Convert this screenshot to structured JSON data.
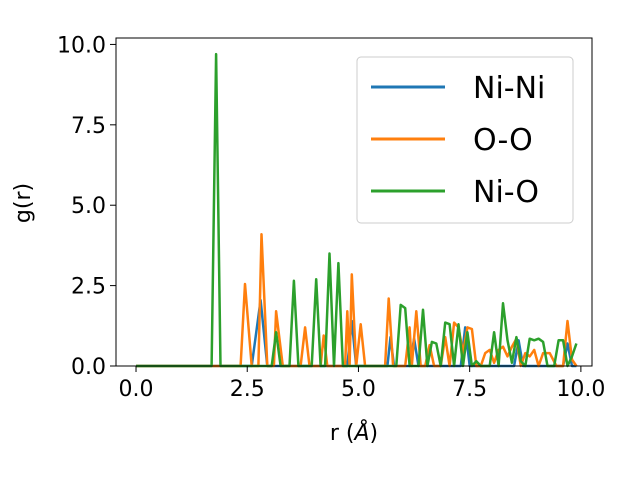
{
  "chart_data": {
    "type": "line",
    "xlabel_main": "r (",
    "xlabel_unit": "Å",
    "xlabel_close": ")",
    "ylabel": "g(r)",
    "xlim": [
      -0.45,
      10.25
    ],
    "ylim": [
      0,
      10.2
    ],
    "xticks": [
      "0.0",
      "2.5",
      "5.0",
      "7.5",
      "10.0"
    ],
    "xtick_values": [
      0,
      2.5,
      5,
      7.5,
      10
    ],
    "yticks": [
      "0.0",
      "2.5",
      "5.0",
      "7.5",
      "10.0"
    ],
    "ytick_values": [
      0,
      2.5,
      5,
      7.5,
      10
    ],
    "legend_position": "upper-right",
    "series": [
      {
        "name": "Ni-Ni",
        "color": "#1f77b4",
        "points": [
          [
            0,
            0
          ],
          [
            2.6,
            0
          ],
          [
            2.8,
            2.05
          ],
          [
            2.95,
            0
          ],
          [
            4.75,
            0
          ],
          [
            4.85,
            1.4
          ],
          [
            4.95,
            0
          ],
          [
            5.65,
            0
          ],
          [
            5.72,
            0.9
          ],
          [
            5.8,
            0
          ],
          [
            6.15,
            0
          ],
          [
            6.25,
            0.85
          ],
          [
            6.35,
            0
          ],
          [
            7.3,
            0
          ],
          [
            7.4,
            1.2
          ],
          [
            7.5,
            0
          ],
          [
            8.5,
            0
          ],
          [
            8.6,
            0.8
          ],
          [
            8.7,
            0
          ],
          [
            9.6,
            0
          ],
          [
            9.7,
            0.7
          ],
          [
            9.8,
            0
          ],
          [
            9.9,
            0
          ]
        ]
      },
      {
        "name": "O-O",
        "color": "#ff7f0e",
        "points": [
          [
            0,
            0
          ],
          [
            2.35,
            0
          ],
          [
            2.45,
            2.55
          ],
          [
            2.6,
            0
          ],
          [
            2.75,
            0
          ],
          [
            2.82,
            4.1
          ],
          [
            2.95,
            0
          ],
          [
            3.1,
            0
          ],
          [
            3.15,
            1.7
          ],
          [
            3.3,
            0
          ],
          [
            3.7,
            0
          ],
          [
            3.8,
            1.2
          ],
          [
            3.9,
            0
          ],
          [
            4.15,
            0
          ],
          [
            4.22,
            0.95
          ],
          [
            4.3,
            0
          ],
          [
            4.7,
            0
          ],
          [
            4.75,
            1.7
          ],
          [
            4.8,
            0
          ],
          [
            4.85,
            2.85
          ],
          [
            4.95,
            0
          ],
          [
            5.05,
            1.3
          ],
          [
            5.15,
            0
          ],
          [
            5.6,
            0
          ],
          [
            5.68,
            2.1
          ],
          [
            5.78,
            0
          ],
          [
            6.05,
            0
          ],
          [
            6.15,
            1.2
          ],
          [
            6.2,
            0
          ],
          [
            6.3,
            1.7
          ],
          [
            6.4,
            0
          ],
          [
            6.5,
            0
          ],
          [
            6.6,
            0.65
          ],
          [
            6.7,
            0
          ],
          [
            6.85,
            0
          ],
          [
            6.95,
            0.9
          ],
          [
            7.05,
            0
          ],
          [
            7.15,
            1.35
          ],
          [
            7.25,
            1.2
          ],
          [
            7.35,
            0.4
          ],
          [
            7.45,
            1.2
          ],
          [
            7.55,
            1.15
          ],
          [
            7.65,
            0
          ],
          [
            7.75,
            0
          ],
          [
            7.85,
            0.4
          ],
          [
            7.95,
            0.5
          ],
          [
            8.05,
            0.1
          ],
          [
            8.15,
            0.5
          ],
          [
            8.25,
            0.6
          ],
          [
            8.35,
            0.3
          ],
          [
            8.45,
            0.6
          ],
          [
            8.55,
            0.85
          ],
          [
            8.65,
            0
          ],
          [
            8.75,
            0.4
          ],
          [
            8.85,
            0.3
          ],
          [
            8.95,
            0.5
          ],
          [
            9.05,
            0
          ],
          [
            9.15,
            0.4
          ],
          [
            9.3,
            0.4
          ],
          [
            9.45,
            0
          ],
          [
            9.6,
            0
          ],
          [
            9.7,
            1.4
          ],
          [
            9.8,
            0.2
          ],
          [
            9.9,
            0
          ]
        ]
      },
      {
        "name": "Ni-O",
        "color": "#2ca02c",
        "points": [
          [
            0,
            0
          ],
          [
            1.7,
            0
          ],
          [
            1.8,
            9.7
          ],
          [
            1.9,
            0
          ],
          [
            3.05,
            0
          ],
          [
            3.15,
            1.05
          ],
          [
            3.25,
            0
          ],
          [
            3.45,
            0
          ],
          [
            3.55,
            2.65
          ],
          [
            3.65,
            0
          ],
          [
            3.95,
            0
          ],
          [
            4.05,
            2.7
          ],
          [
            4.15,
            0
          ],
          [
            4.25,
            0
          ],
          [
            4.35,
            3.5
          ],
          [
            4.45,
            0
          ],
          [
            4.55,
            3.2
          ],
          [
            4.65,
            0
          ],
          [
            5.85,
            0
          ],
          [
            5.95,
            1.9
          ],
          [
            6.05,
            1.8
          ],
          [
            6.15,
            0
          ],
          [
            6.35,
            0
          ],
          [
            6.45,
            1.75
          ],
          [
            6.55,
            0
          ],
          [
            6.65,
            0.75
          ],
          [
            6.75,
            0.7
          ],
          [
            6.85,
            0
          ],
          [
            6.95,
            1.35
          ],
          [
            7.05,
            1.3
          ],
          [
            7.15,
            0
          ],
          [
            7.25,
            1.3
          ],
          [
            7.35,
            0
          ],
          [
            7.45,
            1.05
          ],
          [
            7.55,
            0
          ],
          [
            7.65,
            0.15
          ],
          [
            7.75,
            0
          ],
          [
            7.95,
            0
          ],
          [
            8.05,
            1.05
          ],
          [
            8.15,
            0
          ],
          [
            8.25,
            1.95
          ],
          [
            8.35,
            0.8
          ],
          [
            8.45,
            0.1
          ],
          [
            8.55,
            0.9
          ],
          [
            8.65,
            0.15
          ],
          [
            8.75,
            0
          ],
          [
            8.85,
            0.85
          ],
          [
            8.95,
            0.8
          ],
          [
            9.05,
            0.85
          ],
          [
            9.15,
            0.75
          ],
          [
            9.25,
            0
          ],
          [
            9.4,
            0
          ],
          [
            9.5,
            0.8
          ],
          [
            9.6,
            0.8
          ],
          [
            9.7,
            0
          ],
          [
            9.8,
            0.3
          ],
          [
            9.9,
            0.7
          ]
        ]
      }
    ]
  }
}
